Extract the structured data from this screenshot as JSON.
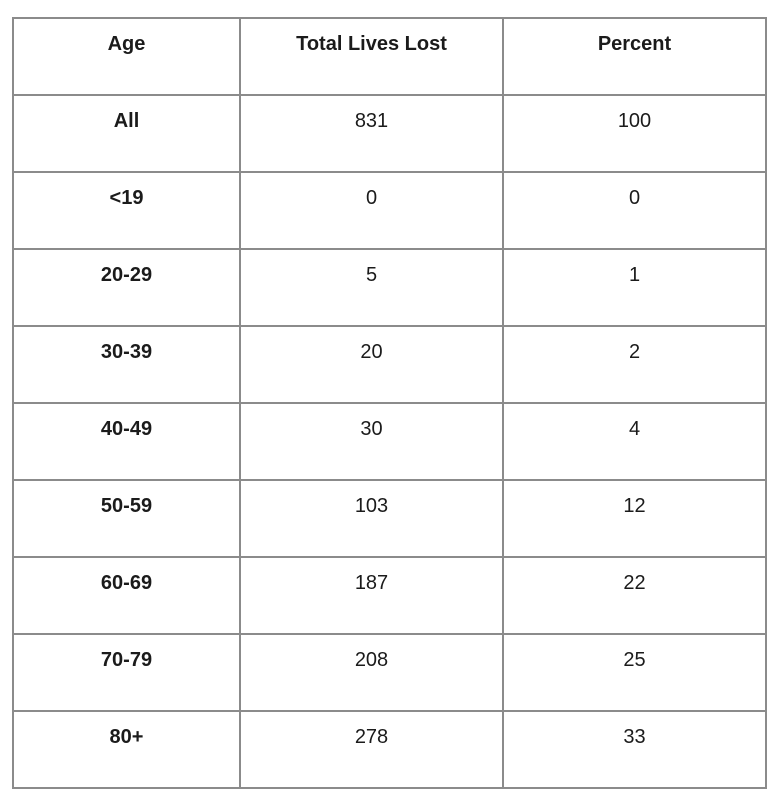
{
  "chart_data": {
    "type": "table",
    "columns": [
      "Age",
      "Total Lives Lost",
      "Percent"
    ],
    "rows": [
      {
        "age": "All",
        "total": "831",
        "percent": "100"
      },
      {
        "age": "<19",
        "total": "0",
        "percent": "0"
      },
      {
        "age": "20-29",
        "total": "5",
        "percent": "1"
      },
      {
        "age": "30-39",
        "total": "20",
        "percent": "2"
      },
      {
        "age": "40-49",
        "total": "30",
        "percent": "4"
      },
      {
        "age": "50-59",
        "total": "103",
        "percent": "12"
      },
      {
        "age": "60-69",
        "total": "187",
        "percent": "22"
      },
      {
        "age": "70-79",
        "total": "208",
        "percent": "25"
      },
      {
        "age": "80+",
        "total": "278",
        "percent": "33"
      }
    ]
  },
  "colors": {
    "border": "#8b8b8b",
    "text": "#1b1b1b",
    "background": "#ffffff"
  }
}
